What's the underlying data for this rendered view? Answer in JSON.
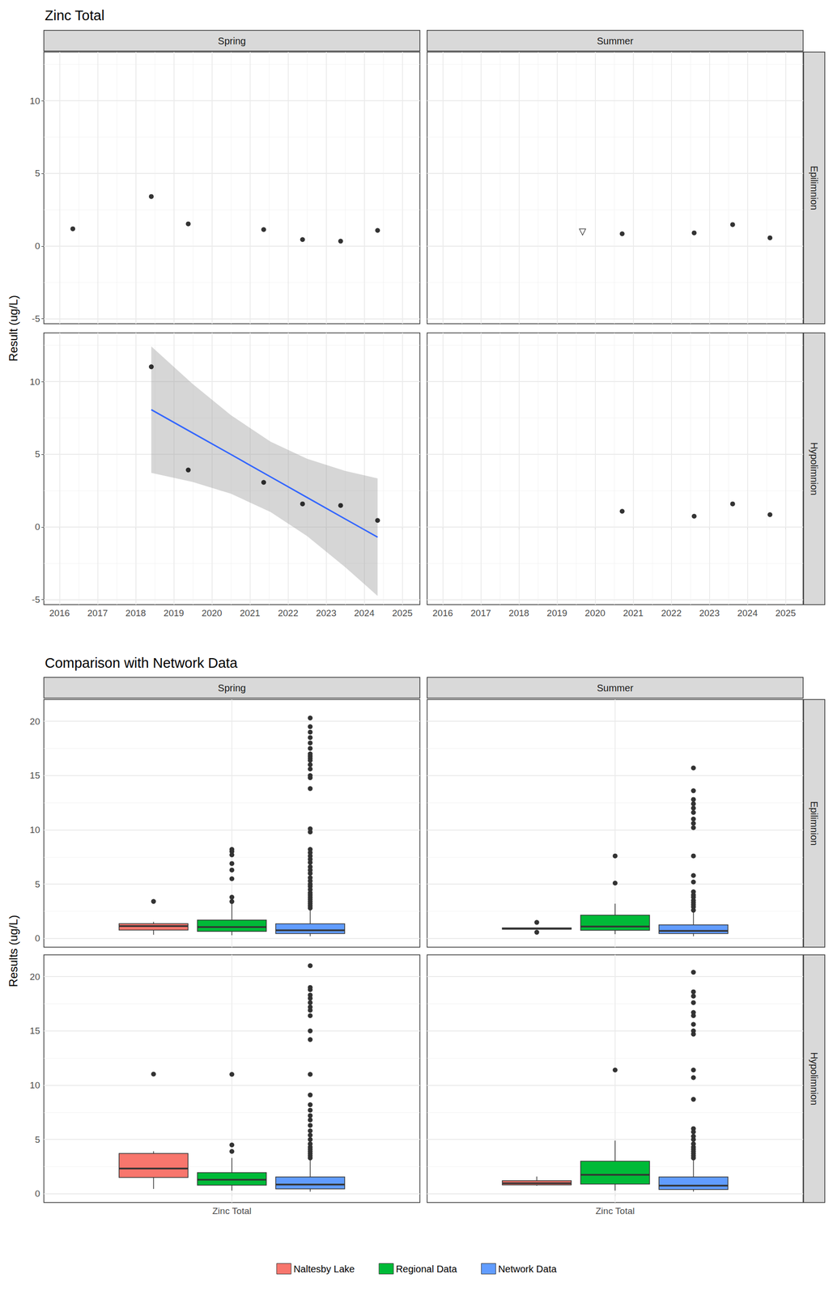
{
  "chart_data": [
    {
      "type": "scatter",
      "title": "Zinc Total",
      "y_label": "Result (ug/L)",
      "columns": [
        "Spring",
        "Summer"
      ],
      "rows": [
        "Epilimnion",
        "Hypolimnion"
      ],
      "xlim": [
        2015.59,
        2025.46
      ],
      "xticks": [
        2016,
        2017,
        2018,
        2019,
        2020,
        2021,
        2022,
        2023,
        2024,
        2025
      ],
      "ylim": [
        -5.34,
        13.35
      ],
      "yticks": [
        -5,
        0,
        5,
        10
      ],
      "grid": true,
      "panels": [
        {
          "column": "Spring",
          "row": "Epilimnion",
          "series": [
            {
              "color": "#000000",
              "marker": "circle",
              "x": [
                2016.35,
                2018.41,
                2019.38,
                2021.36,
                2022.38,
                2023.38,
                2024.35
              ],
              "values": [
                1.19,
                3.41,
                1.53,
                1.14,
                0.45,
                0.34,
                1.08
              ]
            }
          ]
        },
        {
          "column": "Summer",
          "row": "Epilimnion",
          "series": [
            {
              "color": "#000000",
              "marker": "triangle-down-open",
              "x": [
                2019.67
              ],
              "values": [
                0.97
              ]
            },
            {
              "color": "#000000",
              "marker": "circle",
              "x": [
                2020.71,
                2022.6,
                2023.61,
                2024.59
              ],
              "values": [
                0.85,
                0.91,
                1.48,
                0.57
              ]
            }
          ]
        },
        {
          "column": "Spring",
          "row": "Hypolimnion",
          "series": [
            {
              "color": "#000000",
              "marker": "circle",
              "x": [
                2018.41,
                2019.38,
                2021.36,
                2022.38,
                2023.38,
                2024.35
              ],
              "values": [
                11.02,
                3.92,
                3.07,
                1.59,
                1.48,
                0.45
              ]
            }
          ],
          "fit": {
            "color": "#3366FF",
            "x": [
              2018.41,
              2019.5,
              2020.5,
              2021.54,
              2022.5,
              2023.5,
              2024.35
            ],
            "values": [
              8.07,
              6.46,
              4.99,
              3.45,
              2.03,
              0.55,
              -0.7
            ],
            "lower": [
              3.72,
              3.09,
              2.29,
              1.03,
              -0.63,
              -2.76,
              -4.74
            ],
            "upper": [
              12.42,
              9.83,
              7.69,
              5.87,
              4.69,
              3.86,
              3.34
            ]
          }
        },
        {
          "column": "Summer",
          "row": "Hypolimnion",
          "series": [
            {
              "color": "#000000",
              "marker": "circle",
              "x": [
                2020.71,
                2022.6,
                2023.61,
                2024.59
              ],
              "values": [
                1.08,
                0.74,
                1.59,
                0.85
              ]
            }
          ]
        }
      ]
    },
    {
      "type": "boxplot",
      "title": "Comparison with Network Data",
      "y_label": "Results (ug/L)",
      "columns": [
        "Spring",
        "Summer"
      ],
      "rows": [
        "Epilimnion",
        "Hypolimnion"
      ],
      "categories": [
        "Zinc Total"
      ],
      "ylim": [
        -0.8,
        22
      ],
      "yticks": [
        0,
        5,
        10,
        15,
        20
      ],
      "grid": true,
      "legend": "bottom",
      "series": [
        {
          "name": "Naltesby Lake",
          "color": "#F8766D"
        },
        {
          "name": "Regional Data",
          "color": "#00BA38"
        },
        {
          "name": "Network Data",
          "color": "#619CFF"
        }
      ],
      "panels": [
        {
          "column": "Spring",
          "row": "Epilimnion",
          "boxes": [
            {
              "min": 0.34,
              "q1": 0.77,
              "median": 1.14,
              "q3": 1.36,
              "max": 1.53,
              "outliers": [
                3.41
              ]
            },
            {
              "min": 0.3,
              "q1": 0.65,
              "median": 1.05,
              "q3": 1.7,
              "max": 3.2,
              "outliers": [
                3.4,
                3.8,
                5.5,
                6.3,
                6.9,
                7.7,
                8.0,
                8.2
              ]
            },
            {
              "min": 0.2,
              "q1": 0.45,
              "median": 0.75,
              "q3": 1.35,
              "max": 2.7,
              "outliers": [
                2.8,
                3.0,
                3.2,
                3.4,
                3.6,
                3.8,
                4.0,
                4.2,
                4.5,
                4.8,
                5.0,
                5.3,
                5.6,
                6.0,
                6.3,
                6.6,
                7.0,
                7.3,
                7.6,
                7.9,
                8.2,
                9.8,
                10.1,
                13.8,
                14.8,
                15.0,
                15.6,
                16.0,
                16.4,
                16.6,
                16.8,
                17.0,
                17.5,
                18.0,
                18.5,
                19.0,
                19.5,
                20.3
              ]
            }
          ]
        },
        {
          "column": "Summer",
          "row": "Epilimnion",
          "boxes": [
            {
              "min": 0.85,
              "q1": 0.85,
              "median": 0.91,
              "q3": 0.97,
              "max": 0.97,
              "outliers": [
                0.57,
                1.48
              ]
            },
            {
              "min": 0.4,
              "q1": 0.75,
              "median": 1.1,
              "q3": 2.15,
              "max": 3.2,
              "outliers": [
                5.1,
                7.6
              ]
            },
            {
              "min": 0.2,
              "q1": 0.45,
              "median": 0.7,
              "q3": 1.25,
              "max": 2.4,
              "outliers": [
                2.6,
                2.9,
                3.1,
                3.3,
                3.5,
                3.8,
                4.0,
                4.3,
                5.2,
                5.8,
                7.6,
                10.2,
                10.6,
                11.0,
                11.6,
                12.0,
                12.4,
                12.8,
                13.6,
                15.7
              ]
            }
          ]
        },
        {
          "column": "Spring",
          "row": "Hypolimnion",
          "boxes": [
            {
              "min": 0.45,
              "q1": 1.51,
              "median": 2.33,
              "q3": 3.71,
              "max": 3.92,
              "outliers": [
                11.02
              ]
            },
            {
              "min": 0.3,
              "q1": 0.8,
              "median": 1.3,
              "q3": 1.95,
              "max": 3.3,
              "outliers": [
                3.9,
                4.5,
                11.0
              ]
            },
            {
              "min": 0.2,
              "q1": 0.45,
              "median": 0.85,
              "q3": 1.55,
              "max": 3.1,
              "outliers": [
                3.3,
                3.5,
                3.7,
                3.9,
                4.1,
                4.3,
                4.6,
                5.0,
                5.4,
                5.8,
                6.3,
                6.8,
                7.2,
                7.7,
                8.2,
                9.1,
                11.0,
                14.2,
                15.0,
                16.4,
                16.9,
                17.2,
                17.6,
                18.0,
                18.3,
                18.8,
                19.0,
                21.0
              ]
            }
          ]
        },
        {
          "column": "Summer",
          "row": "Hypolimnion",
          "boxes": [
            {
              "min": 0.74,
              "q1": 0.82,
              "median": 0.97,
              "q3": 1.21,
              "max": 1.59,
              "outliers": []
            },
            {
              "min": 0.3,
              "q1": 0.9,
              "median": 1.75,
              "q3": 3.0,
              "max": 4.9,
              "outliers": [
                11.4
              ]
            },
            {
              "min": 0.2,
              "q1": 0.4,
              "median": 0.75,
              "q3": 1.55,
              "max": 3.1,
              "outliers": [
                3.3,
                3.5,
                3.7,
                3.9,
                4.1,
                4.3,
                4.6,
                5.0,
                5.3,
                5.7,
                6.0,
                8.7,
                10.7,
                11.4,
                14.7,
                15.0,
                15.6,
                16.4,
                16.7,
                17.6,
                18.2,
                18.6,
                20.4
              ]
            }
          ]
        }
      ]
    }
  ]
}
